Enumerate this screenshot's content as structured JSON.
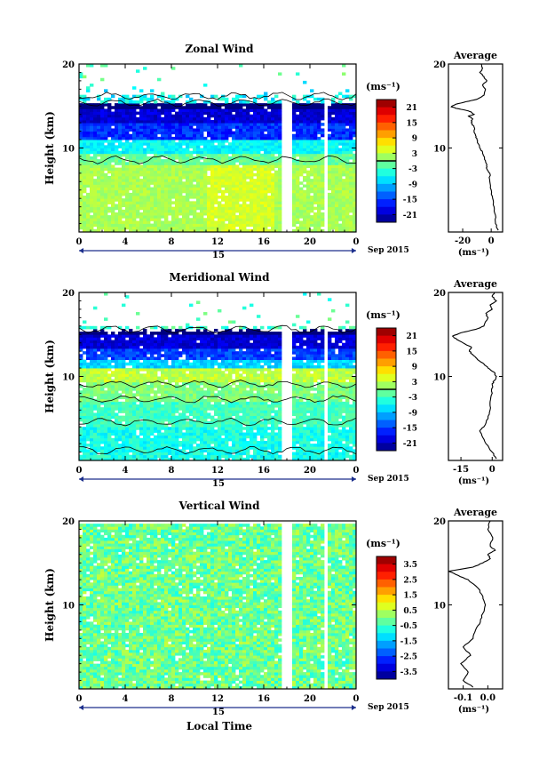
{
  "chart_data": [
    {
      "type": "heatmap",
      "title": "Zonal Wind",
      "ylabel": "Height (km)",
      "xlabel": "",
      "x_ticks": [
        "0",
        "4",
        "8",
        "12",
        "16",
        "20",
        "0"
      ],
      "xlim": [
        0,
        24
      ],
      "ylim": [
        0,
        20
      ],
      "y_ticks": [
        "10",
        "20"
      ],
      "date_label": "15",
      "month_label": "Sep 2015",
      "colorbar": {
        "unit": "(ms⁻¹)",
        "ticks": [
          "21",
          "15",
          "9",
          "3",
          "-3",
          "-9",
          "-15",
          "-21"
        ],
        "tick_values": [
          21,
          15,
          9,
          3,
          -3,
          -9,
          -15,
          -21
        ],
        "range": [
          -24,
          24
        ]
      },
      "profile": {
        "title": "Average",
        "x_ticks": [
          "-20",
          "0"
        ],
        "x_tick_values": [
          -20,
          0
        ],
        "xlim": [
          -30,
          8
        ],
        "xlabel": "(ms⁻¹)",
        "y_ticks": [
          "10",
          "20"
        ],
        "points": [
          [
            5,
            0.2
          ],
          [
            3,
            1
          ],
          [
            3,
            2
          ],
          [
            2,
            3
          ],
          [
            1,
            4
          ],
          [
            0,
            5
          ],
          [
            -1,
            6
          ],
          [
            -1,
            7
          ],
          [
            -3,
            7.5
          ],
          [
            -3,
            8
          ],
          [
            -4,
            8.5
          ],
          [
            -5,
            9
          ],
          [
            -6,
            9.5
          ],
          [
            -8,
            10
          ],
          [
            -9,
            10.5
          ],
          [
            -10,
            11
          ],
          [
            -11,
            11.5
          ],
          [
            -12,
            12
          ],
          [
            -12,
            12.5
          ],
          [
            -14,
            13
          ],
          [
            -13,
            13.5
          ],
          [
            -16,
            13.8
          ],
          [
            -12,
            14
          ],
          [
            -14,
            14.3
          ],
          [
            -18,
            14.5
          ],
          [
            -24,
            14.7
          ],
          [
            -28,
            14.9
          ],
          [
            -25,
            15.2
          ],
          [
            -18,
            15.5
          ],
          [
            -10,
            15.8
          ],
          [
            -5,
            16.3
          ],
          [
            -4,
            17
          ],
          [
            -6,
            17.5
          ],
          [
            -3,
            18
          ],
          [
            -5,
            18.5
          ],
          [
            -8,
            19
          ],
          [
            -6,
            19.5
          ],
          [
            -7,
            20
          ]
        ]
      }
    },
    {
      "type": "heatmap",
      "title": "Meridional Wind",
      "ylabel": "Height (km)",
      "xlabel": "",
      "x_ticks": [
        "0",
        "4",
        "8",
        "12",
        "16",
        "20",
        "0"
      ],
      "xlim": [
        0,
        24
      ],
      "ylim": [
        0,
        20
      ],
      "y_ticks": [
        "10",
        "20"
      ],
      "date_label": "15",
      "month_label": "Sep 2015",
      "colorbar": {
        "unit": "(ms⁻¹)",
        "ticks": [
          "21",
          "15",
          "9",
          "3",
          "-3",
          "-9",
          "-15",
          "-21"
        ],
        "tick_values": [
          21,
          15,
          9,
          3,
          -3,
          -9,
          -15,
          -21
        ],
        "range": [
          -24,
          24
        ]
      },
      "profile": {
        "title": "Average",
        "x_ticks": [
          "-15",
          "0"
        ],
        "x_tick_values": [
          -15,
          0
        ],
        "xlim": [
          -21,
          5
        ],
        "xlabel": "(ms⁻¹)",
        "y_ticks": [
          "10",
          "20"
        ],
        "points": [
          [
            2,
            0.2
          ],
          [
            0,
            1
          ],
          [
            -3,
            2
          ],
          [
            -5,
            3
          ],
          [
            -6,
            3.5
          ],
          [
            -4,
            4
          ],
          [
            -2,
            5
          ],
          [
            -1,
            6
          ],
          [
            -1,
            7
          ],
          [
            0,
            8
          ],
          [
            0,
            9
          ],
          [
            1,
            9.5
          ],
          [
            2,
            10
          ],
          [
            1,
            10.5
          ],
          [
            -2,
            11
          ],
          [
            -4,
            11.5
          ],
          [
            -7,
            12
          ],
          [
            -9,
            12.5
          ],
          [
            -11,
            13
          ],
          [
            -10,
            13.5
          ],
          [
            -14,
            14
          ],
          [
            -17,
            14.4
          ],
          [
            -19,
            14.8
          ],
          [
            -15,
            15.2
          ],
          [
            -8,
            15.6
          ],
          [
            -4,
            16
          ],
          [
            -2,
            17
          ],
          [
            -3,
            17.5
          ],
          [
            0,
            18
          ],
          [
            -1,
            18.5
          ],
          [
            2,
            19
          ],
          [
            0,
            19.5
          ],
          [
            1,
            20
          ]
        ]
      }
    },
    {
      "type": "heatmap",
      "title": "Vertical Wind",
      "ylabel": "Height (km)",
      "xlabel": "Local Time",
      "x_ticks": [
        "0",
        "4",
        "8",
        "12",
        "16",
        "20",
        "0"
      ],
      "xlim": [
        0,
        24
      ],
      "ylim": [
        0,
        20
      ],
      "y_ticks": [
        "10",
        "20"
      ],
      "date_label": "15",
      "month_label": "Sep 2015",
      "colorbar": {
        "unit": "(ms⁻¹)",
        "ticks": [
          "3.5",
          "2.5",
          "1.5",
          "0.5",
          "-0.5",
          "-1.5",
          "-2.5",
          "-3.5"
        ],
        "tick_values": [
          3.5,
          2.5,
          1.5,
          0.5,
          -0.5,
          -1.5,
          -2.5,
          -3.5
        ],
        "range": [
          -4,
          4
        ]
      },
      "profile": {
        "title": "Average",
        "x_ticks": [
          "-0.1",
          "0.0"
        ],
        "x_tick_values": [
          -0.1,
          0.0
        ],
        "xlim": [
          -0.16,
          0.06
        ],
        "xlabel": "(ms⁻¹)",
        "y_ticks": [
          "10",
          "20"
        ],
        "points": [
          [
            -0.06,
            0.2
          ],
          [
            -0.1,
            1
          ],
          [
            -0.08,
            2
          ],
          [
            -0.11,
            3
          ],
          [
            -0.07,
            4
          ],
          [
            -0.1,
            5
          ],
          [
            -0.06,
            6
          ],
          [
            -0.05,
            7
          ],
          [
            -0.03,
            8
          ],
          [
            -0.02,
            9
          ],
          [
            -0.01,
            10
          ],
          [
            -0.02,
            11
          ],
          [
            -0.04,
            12
          ],
          [
            -0.08,
            13
          ],
          [
            -0.12,
            13.5
          ],
          [
            -0.16,
            14
          ],
          [
            -0.06,
            14.5
          ],
          [
            -0.02,
            15
          ],
          [
            0.01,
            15.5
          ],
          [
            0.0,
            16
          ],
          [
            0.03,
            16.5
          ],
          [
            0.01,
            17
          ],
          [
            0.02,
            18
          ],
          [
            0.0,
            19
          ],
          [
            0.01,
            20
          ]
        ]
      }
    }
  ]
}
